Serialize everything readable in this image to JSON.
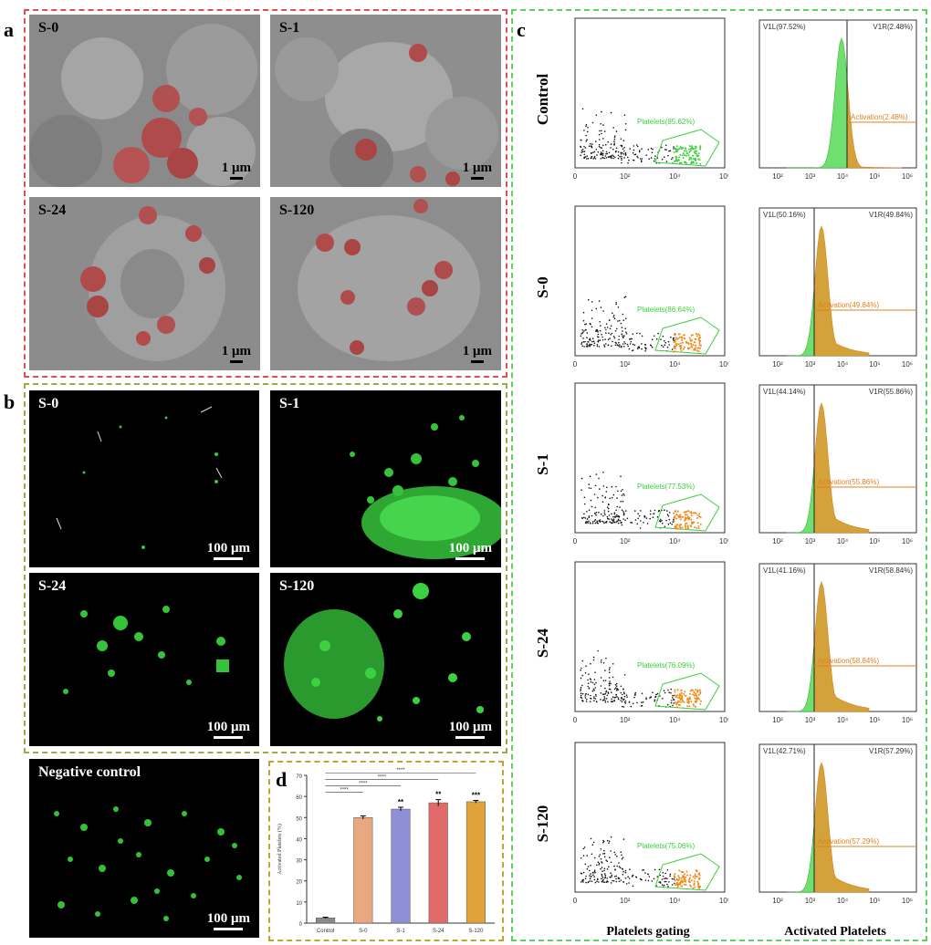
{
  "panel_labels": {
    "a": "a",
    "b": "b",
    "c": "c",
    "d": "d"
  },
  "sem": [
    {
      "label": "S-0",
      "scale": "1 μm"
    },
    {
      "label": "S-1",
      "scale": "1 μm"
    },
    {
      "label": "S-24",
      "scale": "1 μm"
    },
    {
      "label": "S-120",
      "scale": "1 μm"
    }
  ],
  "fluo": [
    {
      "label": "S-0",
      "scale": "100 μm"
    },
    {
      "label": "S-1",
      "scale": "100 μm"
    },
    {
      "label": "S-24",
      "scale": "100 μm"
    },
    {
      "label": "S-120",
      "scale": "100 μm"
    },
    {
      "label": "Negative control",
      "scale": "100 μm"
    }
  ],
  "flow": {
    "column_titles": [
      "Platelets gating",
      "Activated Platelets"
    ],
    "scatter_x_ticks": [
      "0",
      "10²",
      "10⁴",
      "10⁶"
    ],
    "hist_x_ticks": [
      "10²",
      "10³",
      "10⁴",
      "10⁵",
      "10⁶"
    ],
    "rows": [
      {
        "label": "Control",
        "gate": "Platelets(85.62%)",
        "v1l": "V1L(97.52%)",
        "v1r": "V1R(2.48%)",
        "act": "Activation(2.48%)",
        "activated": 2.48
      },
      {
        "label": "S-0",
        "gate": "Platelets(86.64%)",
        "v1l": "V1L(50.16%)",
        "v1r": "V1R(49.84%)",
        "act": "Activation(49.84%)",
        "activated": 49.84
      },
      {
        "label": "S-1",
        "gate": "Platelets(77.53%)",
        "v1l": "V1L(44.14%)",
        "v1r": "V1R(55.86%)",
        "act": "Activation(55.86%)",
        "activated": 55.86
      },
      {
        "label": "S-24",
        "gate": "Platelets(76.09%)",
        "v1l": "V1L(41.16%)",
        "v1r": "V1R(58.84%)",
        "act": "Activation(58.84%)",
        "activated": 58.84
      },
      {
        "label": "S-120",
        "gate": "Platelets(75.06%)",
        "v1l": "V1L(42.71%)",
        "v1r": "V1R(57.29%)",
        "act": "Activation(57.29%)",
        "activated": 57.29
      }
    ]
  },
  "chart_data": {
    "type": "bar",
    "categories": [
      "Control",
      "S-0",
      "S-1",
      "S-24",
      "S-120"
    ],
    "values": [
      2.5,
      50,
      54,
      57,
      57.5
    ],
    "errors": [
      0.3,
      0.8,
      0.9,
      1.5,
      0.6
    ],
    "colors": [
      "#8a8a8a",
      "#e9a87f",
      "#8f8fd6",
      "#e06a6a",
      "#e0a23a"
    ],
    "significance": [
      "",
      "",
      "**",
      "**",
      "***"
    ],
    "brackets": [
      "****",
      "****",
      "****",
      "****"
    ],
    "ylabel": "Activated Platelets (%)",
    "ylim": [
      0,
      70
    ]
  }
}
